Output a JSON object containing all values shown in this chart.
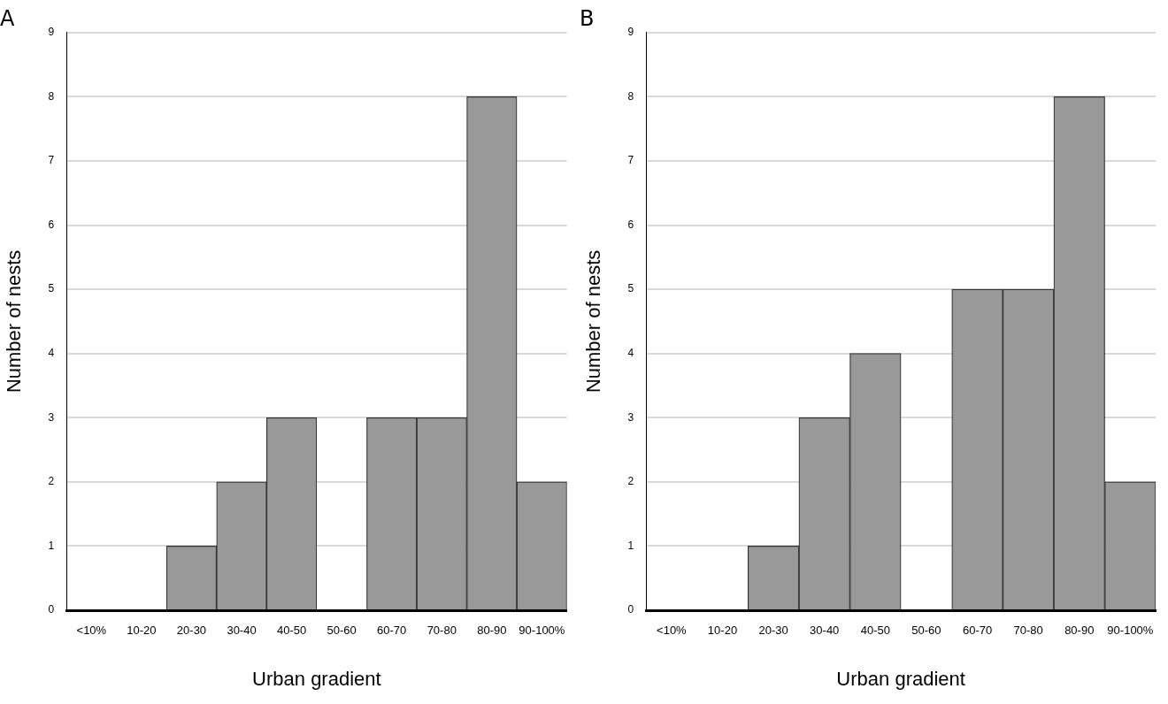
{
  "chart_data": [
    {
      "type": "bar",
      "title": "A",
      "categories": [
        "<10%",
        "10-20",
        "20-30",
        "30-40",
        "40-50",
        "50-60",
        "60-70",
        "70-80",
        "80-90",
        "90-100%"
      ],
      "values": [
        0,
        0,
        1,
        2,
        3,
        0,
        3,
        3,
        8,
        2
      ],
      "color": "#999999",
      "ylim": [
        0,
        9
      ],
      "yticks": [
        0,
        1,
        2,
        3,
        4,
        5,
        6,
        7,
        8,
        9
      ],
      "grid": "y",
      "xlabel": "Urban gradient",
      "ylabel": "Number of nests"
    },
    {
      "type": "bar",
      "title": "B",
      "categories": [
        "<10%",
        "10-20",
        "20-30",
        "30-40",
        "40-50",
        "50-60",
        "60-70",
        "70-80",
        "80-90",
        "90-100%"
      ],
      "values": [
        0,
        0,
        1,
        3,
        4,
        0,
        5,
        5,
        8,
        2
      ],
      "color": "#999999",
      "ylim": [
        0,
        9
      ],
      "yticks": [
        0,
        1,
        2,
        3,
        4,
        5,
        6,
        7,
        8,
        9
      ],
      "grid": "y",
      "xlabel": "Urban gradient",
      "ylabel": "Number of nests"
    }
  ]
}
